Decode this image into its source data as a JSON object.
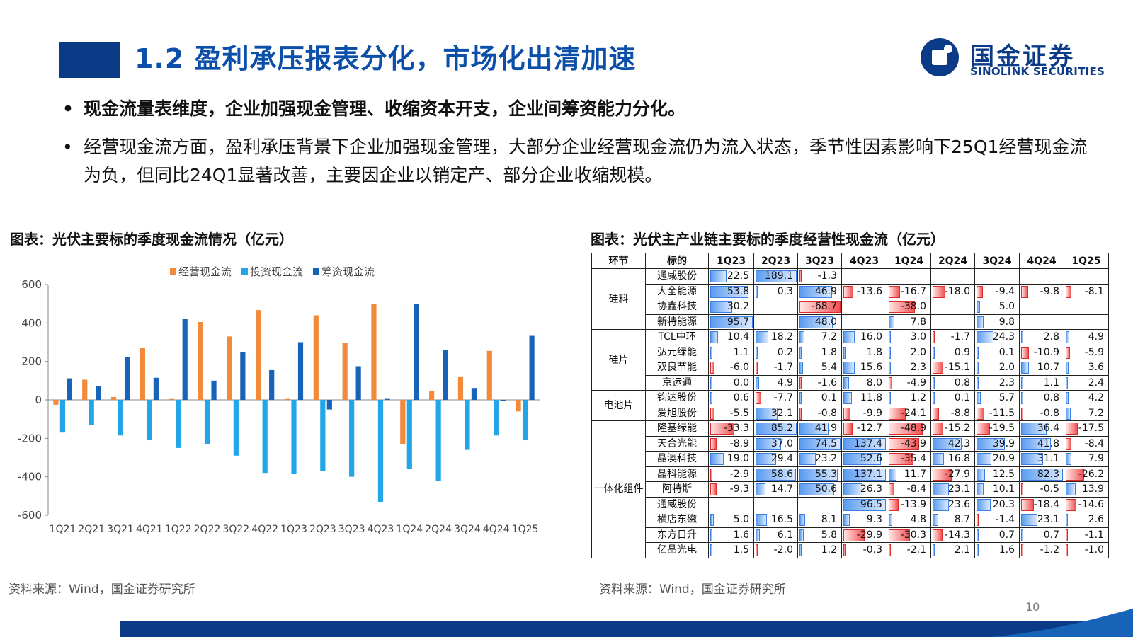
{
  "header": {
    "title": "1.2 盈利承压报表分化，市场化出清加速",
    "logo_cn": "国金证券",
    "logo_en": "SINOLINK SECURITIES",
    "accent": "#0b3b86"
  },
  "bullets": [
    "现金流量表维度，企业加强现金管理、收缩资本开支，企业间筹资能力分化。",
    "经营现金流方面，盈利承压背景下企业加强现金管理，大部分企业经营现金流仍为流入状态，季节性因素影响下25Q1经营现金流为负，但同比24Q1显著改善，主要因企业以销定产、部分企业收缩规模。"
  ],
  "left_title": "图表：光伏主要标的季度现金流情况（亿元）",
  "right_title": "图表：光伏主产业链主要标的季度经营性现金流（亿元）",
  "source_left": "资料来源：Wind，国金证券研究所",
  "source_right": "资料来源：Wind，国金证券研究所",
  "page_number": "10",
  "chart_data": {
    "type": "bar",
    "categories": [
      "1Q21",
      "2Q21",
      "3Q21",
      "4Q21",
      "1Q22",
      "2Q22",
      "3Q22",
      "4Q22",
      "1Q23",
      "2Q23",
      "3Q23",
      "4Q23",
      "1Q24",
      "2Q24",
      "3Q24",
      "4Q24",
      "1Q25"
    ],
    "tick_labels": [
      "1Q21",
      "2Q21",
      "3Q21",
      "4Q21",
      "1Q22",
      "2Q22",
      "3Q22",
      "4Q22",
      "1Q23",
      "2Q23",
      "3Q23",
      "4Q23",
      "1Q24",
      "2Q24",
      "3Q24",
      "4Q24",
      "1Q25"
    ],
    "series": [
      {
        "name": "经营现金流",
        "color": "#f28a3c",
        "values": [
          -25,
          105,
          15,
          272,
          5,
          405,
          330,
          467,
          5,
          440,
          297,
          500,
          -230,
          45,
          122,
          255,
          -60
        ]
      },
      {
        "name": "投资现金流",
        "color": "#22a6e8",
        "values": [
          -170,
          -130,
          -185,
          -210,
          -250,
          -230,
          -290,
          -380,
          -385,
          -370,
          -400,
          -530,
          -360,
          -420,
          -260,
          -185,
          -210
        ]
      },
      {
        "name": "筹资现金流",
        "color": "#1663b8",
        "values": [
          112,
          70,
          222,
          115,
          420,
          100,
          247,
          155,
          300,
          -50,
          175,
          5,
          500,
          260,
          62,
          -5,
          333
        ]
      }
    ],
    "ylim": [
      -600,
      600
    ],
    "yticks": [
      "600",
      "400",
      "200",
      "0",
      "-200",
      "-400",
      "-600"
    ],
    "legend": "top-center",
    "grid": false
  },
  "table": {
    "headers": [
      "环节",
      "标的",
      "1Q23",
      "2Q23",
      "3Q23",
      "4Q23",
      "1Q24",
      "2Q24",
      "3Q24",
      "4Q24",
      "1Q25"
    ],
    "groups": [
      {
        "segment": "硅料",
        "rows": [
          {
            "company": "通威股份",
            "values": [
              "22.5",
              "189.1",
              "-1.3",
              "",
              "",
              "",
              "",
              "",
              ""
            ]
          },
          {
            "company": "大全能源",
            "values": [
              "53.8",
              "0.3",
              "46.9",
              "-13.6",
              "-16.7",
              "-18.0",
              "-9.4",
              "-9.8",
              "-8.1"
            ]
          },
          {
            "company": "协鑫科技",
            "values": [
              "30.2",
              "",
              "-68.7",
              "",
              "-38.0",
              "",
              "5.0",
              "",
              ""
            ]
          },
          {
            "company": "新特能源",
            "values": [
              "95.7",
              "",
              "48.0",
              "",
              "7.8",
              "",
              "9.8",
              "",
              ""
            ]
          }
        ]
      },
      {
        "segment": "硅片",
        "rows": [
          {
            "company": "TCL中环",
            "values": [
              "10.4",
              "18.2",
              "7.2",
              "16.0",
              "3.0",
              "-1.7",
              "24.3",
              "2.8",
              "4.9"
            ]
          },
          {
            "company": "弘元绿能",
            "values": [
              "1.1",
              "0.2",
              "1.8",
              "1.8",
              "2.0",
              "0.9",
              "0.1",
              "-10.9",
              "-5.9"
            ]
          },
          {
            "company": "双良节能",
            "values": [
              "-6.0",
              "-1.7",
              "5.4",
              "15.6",
              "2.3",
              "-15.1",
              "2.0",
              "10.7",
              "3.6"
            ]
          },
          {
            "company": "京运通",
            "values": [
              "0.0",
              "4.9",
              "-1.6",
              "8.0",
              "-4.9",
              "0.8",
              "2.3",
              "1.1",
              "2.4"
            ]
          }
        ]
      },
      {
        "segment": "电池片",
        "rows": [
          {
            "company": "钧达股份",
            "values": [
              "0.6",
              "-7.7",
              "0.1",
              "11.8",
              "1.2",
              "0.1",
              "5.7",
              "0.8",
              "4.2"
            ]
          },
          {
            "company": "爱旭股份",
            "values": [
              "-5.5",
              "32.1",
              "-0.8",
              "-9.9",
              "-24.1",
              "-8.8",
              "-11.5",
              "-0.8",
              "7.2"
            ]
          }
        ]
      },
      {
        "segment": "一体化组件",
        "rows": [
          {
            "company": "隆基绿能",
            "values": [
              "-33.3",
              "85.2",
              "41.9",
              "-12.7",
              "-48.9",
              "-15.2",
              "-19.5",
              "36.4",
              "-17.5"
            ]
          },
          {
            "company": "天合光能",
            "values": [
              "-8.9",
              "37.0",
              "74.5",
              "137.4",
              "-43.9",
              "42.3",
              "39.9",
              "41.8",
              "-8.4"
            ]
          },
          {
            "company": "晶澳科技",
            "values": [
              "19.0",
              "29.4",
              "23.2",
              "52.6",
              "-35.4",
              "16.8",
              "20.9",
              "31.1",
              "7.9"
            ]
          },
          {
            "company": "晶科能源",
            "values": [
              "-2.9",
              "58.6",
              "55.3",
              "137.1",
              "11.7",
              "-27.9",
              "12.5",
              "82.3",
              "-26.2"
            ]
          },
          {
            "company": "阿特斯",
            "values": [
              "-9.3",
              "14.7",
              "50.6",
              "26.3",
              "-8.4",
              "23.1",
              "10.1",
              "-0.5",
              "13.9"
            ]
          },
          {
            "company": "通威股份",
            "values": [
              "",
              "",
              "",
              "96.5",
              "-13.9",
              "23.6",
              "20.3",
              "-18.4",
              "-14.6"
            ]
          },
          {
            "company": "横店东磁",
            "values": [
              "5.0",
              "16.5",
              "8.1",
              "9.3",
              "4.8",
              "8.7",
              "-1.4",
              "23.1",
              "2.6"
            ]
          },
          {
            "company": "东方日升",
            "values": [
              "1.6",
              "6.1",
              "5.8",
              "-29.9",
              "-30.3",
              "-14.3",
              "0.7",
              "0.7",
              "-1.1"
            ]
          },
          {
            "company": "亿晶光电",
            "values": [
              "1.5",
              "-2.0",
              "1.2",
              "-0.3",
              "-2.1",
              "2.1",
              "1.6",
              "-1.2",
              "-1.0"
            ]
          }
        ]
      }
    ]
  }
}
